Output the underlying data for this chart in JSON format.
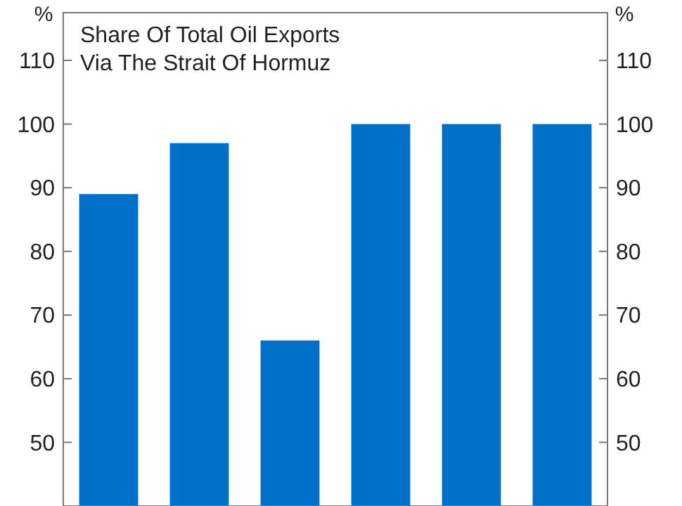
{
  "chart_data": {
    "type": "bar",
    "title": "Share Of Total Oil Exports\nVia The Strait Of Hormuz",
    "ylabel": "%",
    "y2label": "%",
    "categories": [
      null,
      null,
      null,
      null,
      null,
      null
    ],
    "values": [
      89,
      97,
      66,
      100,
      100,
      100
    ],
    "color": "#0070c8",
    "ylim": [
      40,
      117.5
    ],
    "yticks": [
      50,
      60,
      70,
      80,
      90,
      100,
      110
    ],
    "y2lim": [
      40,
      117.5
    ],
    "y2ticks": [
      50,
      60,
      70,
      80,
      90,
      100,
      110
    ],
    "grid": false
  }
}
